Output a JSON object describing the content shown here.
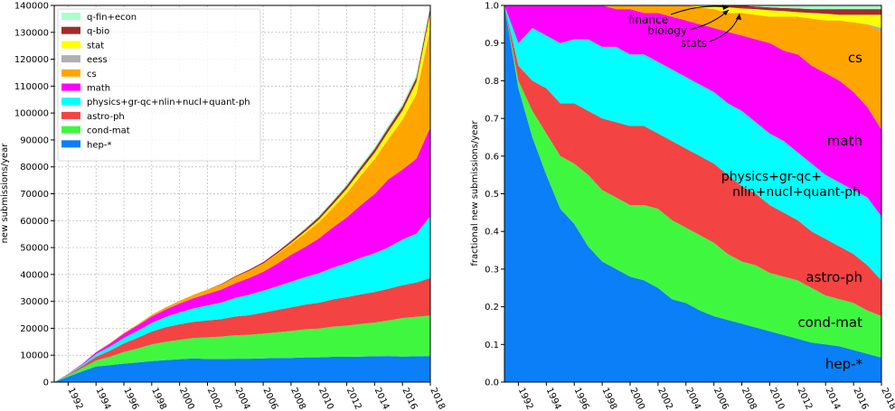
{
  "colors": {
    "hep": "#0a7ff7",
    "condmat": "#40f740",
    "astro": "#f44343",
    "physics": "#00ffff",
    "math": "#ff00ff",
    "cs": "#ffa500",
    "eess": "#b0b0b0",
    "stat": "#ffff00",
    "qbio": "#a52a2a",
    "qfin": "#aaffcc"
  },
  "chart_data": [
    {
      "type": "area",
      "stacked": true,
      "x": [
        1991,
        1992,
        1993,
        1994,
        1995,
        1996,
        1997,
        1998,
        1999,
        2000,
        2001,
        2002,
        2003,
        2004,
        2005,
        2006,
        2007,
        2008,
        2009,
        2010,
        2011,
        2012,
        2013,
        2014,
        2015,
        2016,
        2017,
        2018
      ],
      "xticks": [
        "1992",
        "1994",
        "1996",
        "1998",
        "2000",
        "2002",
        "2004",
        "2006",
        "2008",
        "2010",
        "2012",
        "2014",
        "2016",
        "2018"
      ],
      "ylabel": "new submissions/year",
      "ylim": [
        0,
        140000
      ],
      "yticks": [
        "0",
        "10000",
        "20000",
        "30000",
        "40000",
        "50000",
        "60000",
        "70000",
        "80000",
        "90000",
        "100000",
        "110000",
        "120000",
        "130000",
        "140000"
      ],
      "grid": true,
      "legend_position": "top-left",
      "legend": [
        {
          "key": "qfin",
          "label": "q-fin+econ"
        },
        {
          "key": "qbio",
          "label": "q-bio"
        },
        {
          "key": "stat",
          "label": "stat"
        },
        {
          "key": "eess",
          "label": "eess"
        },
        {
          "key": "cs",
          "label": "cs"
        },
        {
          "key": "math",
          "label": "math"
        },
        {
          "key": "physics",
          "label": "physics+gr-qc+nlin+nucl+quant-ph"
        },
        {
          "key": "astro",
          "label": "astro-ph"
        },
        {
          "key": "condmat",
          "label": "cond-mat"
        },
        {
          "key": "hep",
          "label": "hep-*"
        }
      ],
      "series": [
        {
          "key": "hep",
          "name": "hep-*",
          "values": [
            0,
            2000,
            4000,
            5800,
            6300,
            6900,
            7300,
            7800,
            8200,
            8500,
            8800,
            8600,
            8600,
            8700,
            8700,
            8800,
            9000,
            9000,
            9200,
            9200,
            9400,
            9400,
            9500,
            9600,
            9700,
            9500,
            9600,
            9700
          ]
        },
        {
          "key": "condmat",
          "name": "cond-mat",
          "values": [
            0,
            500,
            1200,
            2200,
            3100,
            4300,
            5200,
            6200,
            6800,
            7200,
            7600,
            8000,
            8300,
            8700,
            8900,
            9200,
            9500,
            10000,
            10400,
            10700,
            11200,
            11600,
            12100,
            12500,
            13200,
            14300,
            14700,
            15000
          ]
        },
        {
          "key": "astro",
          "name": "astro-ph",
          "values": [
            0,
            300,
            700,
            1400,
            2300,
            3200,
            4000,
            4800,
            5400,
            5800,
            6000,
            6300,
            6500,
            7000,
            7300,
            7800,
            8300,
            8800,
            9200,
            9600,
            10100,
            10600,
            11000,
            11400,
            11800,
            12200,
            12700,
            14000
          ]
        },
        {
          "key": "physics",
          "name": "physics+gr-qc+nlin+nucl+quant-ph",
          "values": [
            0,
            200,
            500,
            1000,
            1500,
            2000,
            2600,
            3200,
            3800,
            4400,
            5000,
            5600,
            6200,
            6900,
            7600,
            8200,
            8800,
            9500,
            10200,
            11000,
            11800,
            12600,
            13600,
            14400,
            15400,
            17000,
            18200,
            23000
          ]
        },
        {
          "key": "math",
          "name": "math",
          "values": [
            0,
            100,
            300,
            700,
            1100,
            1600,
            2000,
            2400,
            2800,
            3300,
            3800,
            4300,
            4800,
            5500,
            6200,
            7000,
            8400,
            10000,
            11200,
            12900,
            15000,
            17000,
            19500,
            22000,
            25300,
            26000,
            27800,
            33000
          ]
        },
        {
          "key": "cs",
          "name": "cs",
          "values": [
            0,
            0,
            0,
            100,
            200,
            300,
            400,
            600,
            800,
            1000,
            1300,
            1600,
            1900,
            2300,
            2700,
            3100,
            3500,
            4000,
            5000,
            6000,
            7200,
            9000,
            11000,
            13000,
            15000,
            18500,
            24000,
            36000
          ]
        },
        {
          "key": "eess",
          "name": "eess",
          "values": [
            0,
            0,
            0,
            0,
            0,
            0,
            0,
            0,
            0,
            0,
            0,
            0,
            0,
            0,
            0,
            0,
            0,
            0,
            0,
            0,
            0,
            0,
            0,
            0,
            0,
            0,
            0,
            1300
          ]
        },
        {
          "key": "stat",
          "name": "stat",
          "values": [
            0,
            0,
            0,
            0,
            0,
            0,
            0,
            0,
            0,
            0,
            0,
            0,
            0,
            0,
            0,
            0,
            200,
            400,
            700,
            1000,
            1300,
            1600,
            1900,
            2300,
            2800,
            3400,
            4500,
            5500
          ]
        },
        {
          "key": "qbio",
          "name": "q-bio",
          "values": [
            0,
            0,
            0,
            0,
            0,
            0,
            0,
            0,
            0,
            0,
            0,
            0,
            200,
            300,
            400,
            500,
            700,
            800,
            900,
            1000,
            1100,
            1200,
            1300,
            1400,
            1500,
            1600,
            1700,
            1800
          ]
        },
        {
          "key": "qfin",
          "name": "q-fin+econ",
          "values": [
            0,
            0,
            0,
            0,
            0,
            0,
            0,
            0,
            0,
            0,
            0,
            0,
            0,
            0,
            0,
            0,
            0,
            200,
            300,
            400,
            500,
            600,
            700,
            800,
            900,
            1000,
            1100,
            1200
          ]
        }
      ]
    },
    {
      "type": "area",
      "stacked": true,
      "normalized": true,
      "x": [
        1991,
        1992,
        1993,
        1994,
        1995,
        1996,
        1997,
        1998,
        1999,
        2000,
        2001,
        2002,
        2003,
        2004,
        2005,
        2006,
        2007,
        2008,
        2009,
        2010,
        2011,
        2012,
        2013,
        2014,
        2015,
        2016,
        2017,
        2018
      ],
      "xticks": [
        "1992",
        "1994",
        "1996",
        "1998",
        "2000",
        "2002",
        "2004",
        "2006",
        "2008",
        "2010",
        "2012",
        "2014",
        "2016",
        "2018"
      ],
      "ylabel": "fractional new submissions/year",
      "ylim": [
        0,
        1
      ],
      "yticks": [
        "0.0",
        "0.1",
        "0.2",
        "0.3",
        "0.4",
        "0.5",
        "0.6",
        "0.7",
        "0.8",
        "0.9",
        "1.0"
      ],
      "grid": true,
      "labels": {
        "cs": "cs",
        "math": "math",
        "physics_line1": "physics+gr-qc+",
        "physics_line2": "nlin+nucl+quant-ph",
        "astro": "astro-ph",
        "condmat": "cond-mat",
        "hep": "hep-*"
      },
      "annotations": [
        "finance",
        "biology",
        "stats"
      ],
      "cumulative": {
        "hep": [
          1.0,
          0.78,
          0.65,
          0.55,
          0.46,
          0.42,
          0.36,
          0.32,
          0.3,
          0.28,
          0.27,
          0.25,
          0.22,
          0.21,
          0.19,
          0.175,
          0.165,
          0.155,
          0.145,
          0.135,
          0.125,
          0.115,
          0.105,
          0.1,
          0.095,
          0.085,
          0.075,
          0.065
        ],
        "condmat": [
          1.0,
          0.8,
          0.72,
          0.66,
          0.6,
          0.58,
          0.55,
          0.51,
          0.49,
          0.47,
          0.47,
          0.46,
          0.43,
          0.41,
          0.39,
          0.37,
          0.34,
          0.32,
          0.31,
          0.29,
          0.28,
          0.27,
          0.25,
          0.23,
          0.22,
          0.21,
          0.19,
          0.175
        ],
        "astro": [
          1.0,
          0.84,
          0.8,
          0.78,
          0.74,
          0.74,
          0.72,
          0.7,
          0.69,
          0.68,
          0.68,
          0.66,
          0.64,
          0.62,
          0.6,
          0.58,
          0.55,
          0.52,
          0.5,
          0.47,
          0.45,
          0.43,
          0.4,
          0.38,
          0.36,
          0.34,
          0.31,
          0.27
        ],
        "physics": [
          1.0,
          0.9,
          0.94,
          0.92,
          0.9,
          0.91,
          0.91,
          0.89,
          0.89,
          0.87,
          0.87,
          0.85,
          0.83,
          0.81,
          0.79,
          0.77,
          0.74,
          0.72,
          0.69,
          0.66,
          0.64,
          0.61,
          0.58,
          0.55,
          0.53,
          0.51,
          0.49,
          0.44
        ],
        "math": [
          1.0,
          1.0,
          1.0,
          1.0,
          1.0,
          1.0,
          1.0,
          1.0,
          0.99,
          0.99,
          0.98,
          0.98,
          0.97,
          0.96,
          0.95,
          0.94,
          0.93,
          0.92,
          0.91,
          0.9,
          0.88,
          0.87,
          0.84,
          0.82,
          0.8,
          0.77,
          0.73,
          0.67
        ],
        "cs": [
          1.0,
          1.0,
          1.0,
          1.0,
          1.0,
          1.0,
          1.0,
          1.0,
          1.0,
          1.0,
          1.0,
          1.0,
          1.0,
          1.0,
          0.995,
          0.99,
          0.98,
          0.98,
          0.975,
          0.97,
          0.97,
          0.97,
          0.965,
          0.96,
          0.96,
          0.955,
          0.95,
          0.93
        ],
        "eess": [
          1.0,
          1.0,
          1.0,
          1.0,
          1.0,
          1.0,
          1.0,
          1.0,
          1.0,
          1.0,
          1.0,
          1.0,
          1.0,
          1.0,
          0.995,
          0.99,
          0.98,
          0.98,
          0.975,
          0.97,
          0.97,
          0.97,
          0.965,
          0.96,
          0.96,
          0.955,
          0.95,
          0.94
        ],
        "stat": [
          1.0,
          1.0,
          1.0,
          1.0,
          1.0,
          1.0,
          1.0,
          1.0,
          1.0,
          1.0,
          1.0,
          1.0,
          1.0,
          1.0,
          1.0,
          0.998,
          0.995,
          0.992,
          0.99,
          0.987,
          0.985,
          0.982,
          0.98,
          0.978,
          0.975,
          0.975,
          0.975,
          0.975
        ],
        "qbio": [
          1.0,
          1.0,
          1.0,
          1.0,
          1.0,
          1.0,
          1.0,
          1.0,
          1.0,
          1.0,
          1.0,
          1.0,
          1.0,
          1.0,
          1.0,
          1.0,
          1.0,
          1.0,
          0.997,
          0.995,
          0.993,
          0.992,
          0.99,
          0.99,
          0.99,
          0.99,
          0.99,
          0.99
        ],
        "qfin": [
          1.0,
          1.0,
          1.0,
          1.0,
          1.0,
          1.0,
          1.0,
          1.0,
          1.0,
          1.0,
          1.0,
          1.0,
          1.0,
          1.0,
          1.0,
          1.0,
          1.0,
          1.0,
          1.0,
          1.0,
          1.0,
          1.0,
          1.0,
          1.0,
          1.0,
          1.0,
          1.0,
          1.0
        ]
      }
    }
  ]
}
